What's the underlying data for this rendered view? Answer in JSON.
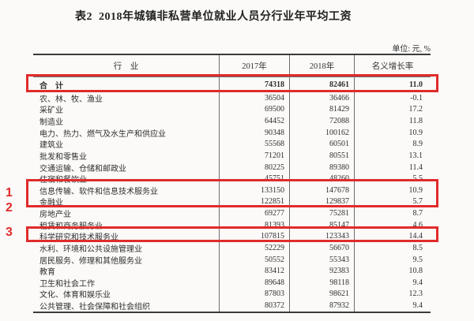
{
  "page": {
    "title": "表2  2018年城镇非私营单位就业人员分行业年平均工资",
    "unit_label": "单位: 元, %"
  },
  "table": {
    "columns": [
      "行　业",
      "2017年",
      "2018年",
      "名义增长率"
    ],
    "total_row": {
      "industry": "合　计",
      "y2017": "74318",
      "y2018": "82461",
      "growth": "11.0"
    },
    "rows": [
      {
        "industry": "农、林、牧、渔业",
        "y2017": "36504",
        "y2018": "36466",
        "growth": "-0.1"
      },
      {
        "industry": "采矿业",
        "y2017": "69500",
        "y2018": "81429",
        "growth": "17.2"
      },
      {
        "industry": "制造业",
        "y2017": "64452",
        "y2018": "72088",
        "growth": "11.8"
      },
      {
        "industry": "电力、热力、燃气及水生产和供应业",
        "y2017": "90348",
        "y2018": "100162",
        "growth": "10.9"
      },
      {
        "industry": "建筑业",
        "y2017": "55568",
        "y2018": "60501",
        "growth": "8.9"
      },
      {
        "industry": "批发和零售业",
        "y2017": "71201",
        "y2018": "80551",
        "growth": "13.1"
      },
      {
        "industry": "交通运输、仓储和邮政业",
        "y2017": "80225",
        "y2018": "89380",
        "growth": "11.4"
      },
      {
        "industry": "住宿和餐饮业",
        "y2017": "45751",
        "y2018": "48260",
        "growth": "5.5"
      },
      {
        "industry": "信息传输、软件和信息技术服务业",
        "y2017": "133150",
        "y2018": "147678",
        "growth": "10.9"
      },
      {
        "industry": "金融业",
        "y2017": "122851",
        "y2018": "129837",
        "growth": "5.7"
      },
      {
        "industry": "房地产业",
        "y2017": "69277",
        "y2018": "75281",
        "growth": "8.7"
      },
      {
        "industry": "租赁和商务服务业",
        "y2017": "81393",
        "y2018": "85147",
        "growth": "4.6"
      },
      {
        "industry": "科学研究和技术服务业",
        "y2017": "107815",
        "y2018": "123343",
        "growth": "14.4"
      },
      {
        "industry": "水利、环境和公共设施管理业",
        "y2017": "52229",
        "y2018": "56670",
        "growth": "8.5"
      },
      {
        "industry": "居民服务、修理和其他服务业",
        "y2017": "50552",
        "y2018": "55343",
        "growth": "9.5"
      },
      {
        "industry": "教育",
        "y2017": "83412",
        "y2018": "92383",
        "growth": "10.8"
      },
      {
        "industry": "卫生和社会工作",
        "y2017": "89648",
        "y2018": "98118",
        "growth": "9.4"
      },
      {
        "industry": "文化、体育和娱乐业",
        "y2017": "87803",
        "y2018": "98621",
        "growth": "12.3"
      },
      {
        "industry": "公共管理、社会保障和社会组织",
        "y2017": "80372",
        "y2018": "87932",
        "growth": "9.4"
      }
    ]
  },
  "annotations": {
    "highlight_color": "#e02b2b",
    "markers": [
      "1",
      "2",
      "3"
    ]
  }
}
